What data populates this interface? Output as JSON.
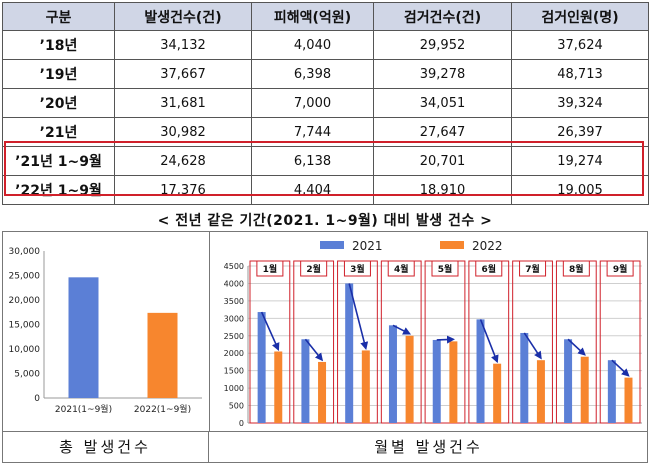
{
  "table": {
    "headers": [
      "구분",
      "발생건수(건)",
      "피해액(억원)",
      "검거건수(건)",
      "검거인원(명)"
    ],
    "rows": [
      [
        "’18년",
        "34,132",
        "4,040",
        "29,952",
        "37,624"
      ],
      [
        "’19년",
        "37,667",
        "6,398",
        "39,278",
        "48,713"
      ],
      [
        "’20년",
        "31,681",
        "7,000",
        "34,051",
        "39,324"
      ],
      [
        "’21년",
        "30,982",
        "7,744",
        "27,647",
        "26,397"
      ],
      [
        "’21년 1~9월",
        "24,628",
        "6,138",
        "20,701",
        "19,274"
      ],
      [
        "’22년 1~9월",
        "17,376",
        "4,404",
        "18,910",
        "19,005"
      ]
    ]
  },
  "subtitle": "< 전년 같은 기간(2021. 1~9월) 대비 발생 건수 >",
  "highlight_color": "#d0202a",
  "chart_data": [
    {
      "type": "bar",
      "caption": "총 발생건수",
      "categories": [
        "2021(1~9월)",
        "2022(1~9월)"
      ],
      "values": [
        24628,
        17376
      ],
      "colors": [
        "#5b7fd6",
        "#f7862e"
      ],
      "ylim": [
        0,
        30000
      ],
      "yticks": [
        "0",
        "5,000",
        "10,000",
        "15,000",
        "20,000",
        "25,000",
        "30,000"
      ],
      "grid": false
    },
    {
      "type": "bar",
      "caption": "월별 발생건수",
      "categories": [
        "1월",
        "2월",
        "3월",
        "4월",
        "5월",
        "6월",
        "7월",
        "8월",
        "9월"
      ],
      "series": [
        {
          "name": "2021",
          "color": "#5b7fd6",
          "values": [
            3180,
            2400,
            4000,
            2800,
            2380,
            2970,
            2580,
            2400,
            1800
          ]
        },
        {
          "name": "2022",
          "color": "#f7862e",
          "values": [
            2050,
            1750,
            2080,
            2500,
            2340,
            1700,
            1800,
            1900,
            1300
          ]
        }
      ],
      "ylim": [
        0,
        4500
      ],
      "yticks": [
        "0",
        "500",
        "1000",
        "1500",
        "2000",
        "2500",
        "3000",
        "3500",
        "4000",
        "4500"
      ],
      "legend": "top",
      "grid": true
    }
  ]
}
